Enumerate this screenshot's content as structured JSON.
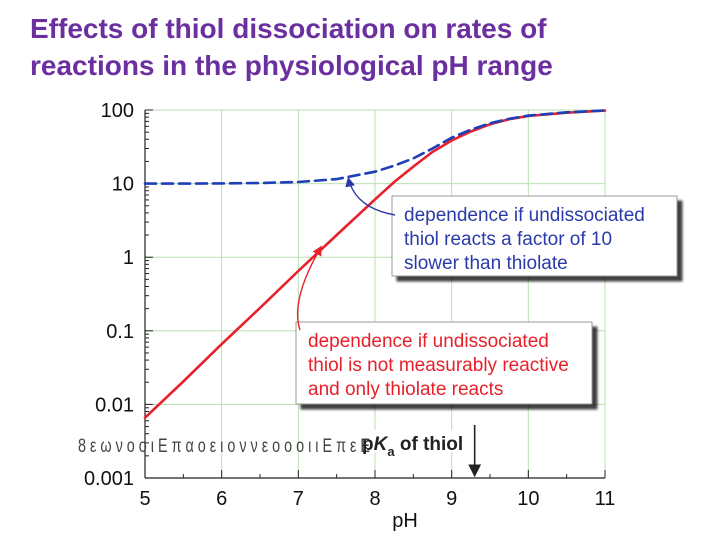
{
  "title": {
    "line1": "Effects of thiol dissociation on rates of",
    "line2": "reactions in the physiological pH range",
    "color": "#6b2fa0"
  },
  "chart_data": {
    "type": "line",
    "xlabel": "pH",
    "ylabel": "",
    "xlim": [
      5,
      11
    ],
    "ylim": [
      0.001,
      100
    ],
    "y_scale": "log",
    "grid": true,
    "x_ticks": [
      "5",
      "6",
      "7",
      "8",
      "9",
      "10",
      "11"
    ],
    "y_ticks": [
      {
        "value": 100,
        "label": "100"
      },
      {
        "value": 10,
        "label": "10"
      },
      {
        "value": 1,
        "label": "1"
      },
      {
        "value": 0.1,
        "label": "0.1"
      },
      {
        "value": 0.01,
        "label": "0.01"
      },
      {
        "value": 0.001,
        "label": "0.001"
      }
    ],
    "colors": {
      "thiolate_only": "#e8202a",
      "undissociated_slower": "#1f3fb8",
      "grid": "#b8e0b0",
      "annotation_text": "#2a3aa8",
      "annotation_text_red": "#e8202a",
      "pka_text": "#222222"
    },
    "series": [
      {
        "id": "thiolate_only",
        "style": "solid",
        "points": [
          [
            5.0,
            0.0066
          ],
          [
            5.5,
            0.0205
          ],
          [
            6.0,
            0.066
          ],
          [
            6.5,
            0.205
          ],
          [
            7.0,
            0.65
          ],
          [
            7.5,
            2.0
          ],
          [
            8.0,
            6.1
          ],
          [
            8.25,
            10.5
          ],
          [
            8.5,
            17.0
          ],
          [
            8.75,
            27.0
          ],
          [
            9.0,
            38.5
          ],
          [
            9.25,
            51.0
          ],
          [
            9.5,
            64.0
          ],
          [
            9.75,
            75.0
          ],
          [
            10.0,
            83.0
          ],
          [
            10.5,
            92.0
          ],
          [
            11.0,
            98.0
          ]
        ]
      },
      {
        "id": "undissociated_slower",
        "style": "dashed",
        "points": [
          [
            5.0,
            10.0
          ],
          [
            5.5,
            10.0
          ],
          [
            6.0,
            10.05
          ],
          [
            6.5,
            10.2
          ],
          [
            7.0,
            10.5
          ],
          [
            7.5,
            11.5
          ],
          [
            8.0,
            14.5
          ],
          [
            8.25,
            17.5
          ],
          [
            8.5,
            22.0
          ],
          [
            8.75,
            30.0
          ],
          [
            9.0,
            42.0
          ],
          [
            9.25,
            54.0
          ],
          [
            9.5,
            66.0
          ],
          [
            9.75,
            76.0
          ],
          [
            10.0,
            84.0
          ],
          [
            10.5,
            93.0
          ],
          [
            11.0,
            98.5
          ]
        ]
      }
    ],
    "annotations": [
      {
        "id": "annot-dashed",
        "lines": [
          "dependence if undissociated",
          "thiol reacts a factor of 10",
          "slower than thiolate"
        ],
        "target": [
          7.65,
          12.0
        ]
      },
      {
        "id": "annot-solid",
        "lines": [
          "dependence if undissociated",
          "thiol is not measurably reactive",
          "and only thiolate reacts"
        ],
        "target": [
          7.3,
          1.4
        ]
      }
    ],
    "pka_marker": {
      "x": 9.3,
      "prefix": "p",
      "italic": "K",
      "subscript": "a",
      "suffix": "of thiol",
      "overprint": "8 ε ω ν ο ο ι Ε π α ο ε ι ο ν ν ε ο ο ο ι ι Ε π ε Ε"
    }
  }
}
